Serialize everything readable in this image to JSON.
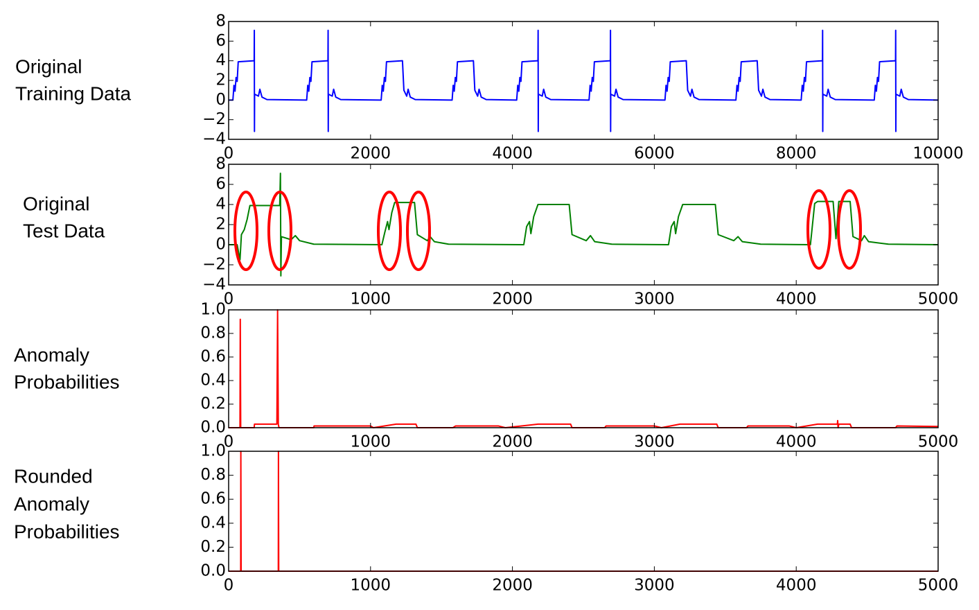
{
  "chart_data": [
    {
      "type": "line",
      "ylabel": [
        "Original",
        "Training Data"
      ],
      "color": "#0000ff",
      "x": [
        0,
        60,
        75,
        90,
        105,
        120,
        135,
        360,
        362,
        364,
        366,
        420,
        440,
        470,
        540,
        1100,
        1115,
        1130,
        1145,
        1160,
        1175,
        1400,
        1402,
        1404,
        1406,
        1460,
        1480,
        1510,
        1580,
        2150,
        2165,
        2180,
        2195,
        2210,
        2225,
        2450,
        2470,
        2510,
        2530,
        2560,
        2630,
        3150,
        3165,
        3180,
        3195,
        3210,
        3225,
        3450,
        3470,
        3510,
        3530,
        3560,
        3630,
        4060,
        4075,
        4090,
        4105,
        4120,
        4135,
        4360,
        4362,
        4364,
        4366,
        4420,
        4440,
        4470,
        4540,
        5080,
        5095,
        5110,
        5125,
        5140,
        5155,
        5380,
        5382,
        5384,
        5386,
        5440,
        5460,
        5490,
        5560,
        6150,
        6165,
        6180,
        6195,
        6210,
        6225,
        6450,
        6470,
        6510,
        6530,
        6560,
        6630,
        7150,
        7165,
        7180,
        7195,
        7210,
        7225,
        7450,
        7470,
        7510,
        7530,
        7560,
        7630,
        8070,
        8085,
        8100,
        8115,
        8130,
        8145,
        8370,
        8372,
        8374,
        8376,
        8430,
        8450,
        8480,
        8550,
        9100,
        9115,
        9130,
        9145,
        9160,
        9175,
        9400,
        9402,
        9404,
        9406,
        9460,
        9480,
        9510,
        9580,
        10000
      ],
      "values": [
        0,
        0,
        1.5,
        0.9,
        2.3,
        1.9,
        3.9,
        4.0,
        7.1,
        -3.2,
        0.6,
        0.4,
        1.1,
        0.3,
        0.05,
        0,
        1.5,
        0.9,
        2.3,
        1.9,
        3.9,
        4.0,
        7.1,
        -3.2,
        0.6,
        0.4,
        1.1,
        0.3,
        0.05,
        0,
        1.5,
        0.9,
        2.3,
        1.9,
        3.9,
        4.0,
        1.0,
        0.4,
        1.1,
        0.3,
        0.05,
        0,
        1.5,
        0.9,
        2.3,
        1.9,
        3.9,
        4.0,
        1.0,
        0.4,
        1.1,
        0.3,
        0.05,
        0,
        1.5,
        0.9,
        2.3,
        1.9,
        3.9,
        4.0,
        7.1,
        -3.2,
        0.6,
        0.4,
        1.1,
        0.3,
        0.05,
        0,
        1.5,
        0.9,
        2.3,
        1.9,
        3.9,
        4.0,
        7.1,
        -3.2,
        0.6,
        0.4,
        1.1,
        0.3,
        0.05,
        0,
        1.5,
        0.9,
        2.3,
        1.9,
        3.9,
        4.0,
        1.0,
        0.4,
        1.1,
        0.3,
        0.05,
        0,
        1.5,
        0.9,
        2.3,
        1.9,
        3.9,
        4.0,
        1.0,
        0.4,
        1.1,
        0.3,
        0.05,
        0,
        1.5,
        0.9,
        2.3,
        1.9,
        3.9,
        4.0,
        7.1,
        -3.2,
        0.6,
        0.4,
        1.1,
        0.3,
        0.05,
        0,
        1.5,
        0.9,
        2.3,
        1.9,
        3.9,
        4.0,
        7.1,
        -3.2,
        0.6,
        0.4,
        1.1,
        0.3,
        0.05,
        0
      ],
      "xlim": [
        0,
        10000
      ],
      "xticks": [
        0,
        2000,
        4000,
        6000,
        8000,
        10000
      ],
      "ylim": [
        -4,
        8
      ],
      "yticks": [
        {
          "value": -4,
          "label": "−4"
        },
        {
          "value": -2,
          "label": "−2"
        },
        0,
        2,
        4,
        6,
        8
      ]
    },
    {
      "type": "line",
      "ylabel": [
        "Original",
        "Test Data"
      ],
      "color": "#008000",
      "x": [
        0,
        60,
        80,
        90,
        110,
        130,
        150,
        360,
        365,
        368,
        372,
        440,
        470,
        500,
        600,
        1080,
        1100,
        1120,
        1130,
        1150,
        1170,
        1310,
        1330,
        1400,
        1420,
        1450,
        1550,
        2080,
        2100,
        2120,
        2130,
        2150,
        2180,
        2400,
        2420,
        2520,
        2550,
        2580,
        2700,
        3100,
        3120,
        3140,
        3150,
        3170,
        3200,
        3430,
        3450,
        3560,
        3590,
        3620,
        3750,
        4100,
        4130,
        4150,
        4260,
        4280,
        4300,
        4380,
        4400,
        4460,
        4480,
        4510,
        4650,
        5000
      ],
      "values": [
        0,
        0,
        -1.5,
        1.0,
        1.5,
        2.5,
        3.9,
        3.9,
        7.1,
        -3.1,
        0.8,
        0.5,
        0.9,
        0.4,
        0.05,
        0,
        1.2,
        2.3,
        1.5,
        3.2,
        4.2,
        4.2,
        1.0,
        0.4,
        0.8,
        0.3,
        0.05,
        0,
        1.8,
        2.3,
        1.1,
        2.8,
        4.0,
        4.0,
        1.0,
        0.4,
        0.9,
        0.3,
        0.05,
        0,
        1.8,
        2.3,
        1.1,
        2.8,
        4.0,
        4.0,
        1.0,
        0.4,
        0.8,
        0.3,
        0.05,
        0,
        4.1,
        4.3,
        4.3,
        0.6,
        4.3,
        4.3,
        0.8,
        0.4,
        0.9,
        0.3,
        0.05,
        0
      ],
      "xlim": [
        0,
        5000
      ],
      "xticks": [
        0,
        1000,
        2000,
        3000,
        4000,
        5000
      ],
      "ylim": [
        -4,
        8
      ],
      "yticks": [
        {
          "value": -4,
          "label": "−4"
        },
        {
          "value": -2,
          "label": "−2"
        },
        0,
        2,
        4,
        6,
        8
      ]
    },
    {
      "type": "line",
      "ylabel": [
        "Anomaly",
        "Probabilities"
      ],
      "color": "#ff0000",
      "x": [
        0,
        80,
        82,
        85,
        180,
        182,
        340,
        345,
        350,
        355,
        600,
        602,
        1000,
        1020,
        1180,
        1320,
        1330,
        1580,
        1600,
        1900,
        1950,
        2180,
        2410,
        2420,
        2650,
        2660,
        3000,
        3050,
        3180,
        3440,
        3450,
        3650,
        3660,
        3950,
        4000,
        4150,
        4290,
        4292,
        4295,
        4300,
        4380,
        4390,
        4700,
        4710,
        5000
      ],
      "values": [
        0,
        0,
        0.92,
        0,
        0,
        0.03,
        0.03,
        1.0,
        0.03,
        0,
        0,
        0.015,
        0.015,
        0,
        0.03,
        0.03,
        0,
        0,
        0.015,
        0.015,
        0,
        0.03,
        0.03,
        0,
        0,
        0.015,
        0.015,
        0,
        0.03,
        0.03,
        0,
        0,
        0.015,
        0.015,
        0,
        0.03,
        0.03,
        0.06,
        0,
        0.03,
        0.03,
        0,
        0,
        0.015,
        0.01
      ],
      "xlim": [
        0,
        5000
      ],
      "xticks": [
        0,
        1000,
        2000,
        3000,
        4000,
        5000
      ],
      "ylim": [
        0,
        1
      ],
      "yticks": [
        {
          "value": 0,
          "label": "0.0"
        },
        0.2,
        0.4,
        0.6,
        0.8,
        {
          "value": 1,
          "label": "1.0"
        }
      ]
    },
    {
      "type": "line",
      "ylabel": [
        "Rounded",
        "Anomaly",
        "Probabilities"
      ],
      "color": "#ff0000",
      "x": [
        0,
        85,
        86,
        88,
        350,
        351,
        353,
        5000
      ],
      "values": [
        0,
        0,
        1,
        0,
        0,
        1,
        0,
        0
      ],
      "xlim": [
        0,
        5000
      ],
      "xticks": [
        0,
        1000,
        2000,
        3000,
        4000,
        5000
      ],
      "ylim": [
        0,
        1
      ],
      "yticks": [
        {
          "value": 0,
          "label": "0.0"
        },
        0.2,
        0.4,
        0.6,
        0.8,
        {
          "value": 1,
          "label": "1.0"
        }
      ]
    }
  ]
}
